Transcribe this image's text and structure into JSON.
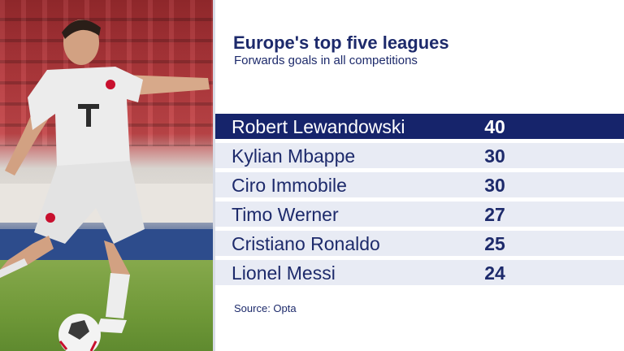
{
  "header": {
    "title": "Europe's top five leagues",
    "subtitle": "Forwards goals in all competitions"
  },
  "table": {
    "rows": [
      {
        "name": "Robert Lewandowski",
        "goals": "40",
        "highlighted": true
      },
      {
        "name": "Kylian Mbappe",
        "goals": "30",
        "highlighted": false
      },
      {
        "name": "Ciro Immobile",
        "goals": "30",
        "highlighted": false
      },
      {
        "name": "Timo Werner",
        "goals": "27",
        "highlighted": false
      },
      {
        "name": "Cristiano Ronaldo",
        "goals": "25",
        "highlighted": false
      },
      {
        "name": "Lionel Messi",
        "goals": "24",
        "highlighted": false
      }
    ]
  },
  "footer": {
    "source": "Source: Opta"
  },
  "colors": {
    "navy": "#16246b",
    "text": "#1d2a6b",
    "row_bg": "#e8ebf4"
  }
}
